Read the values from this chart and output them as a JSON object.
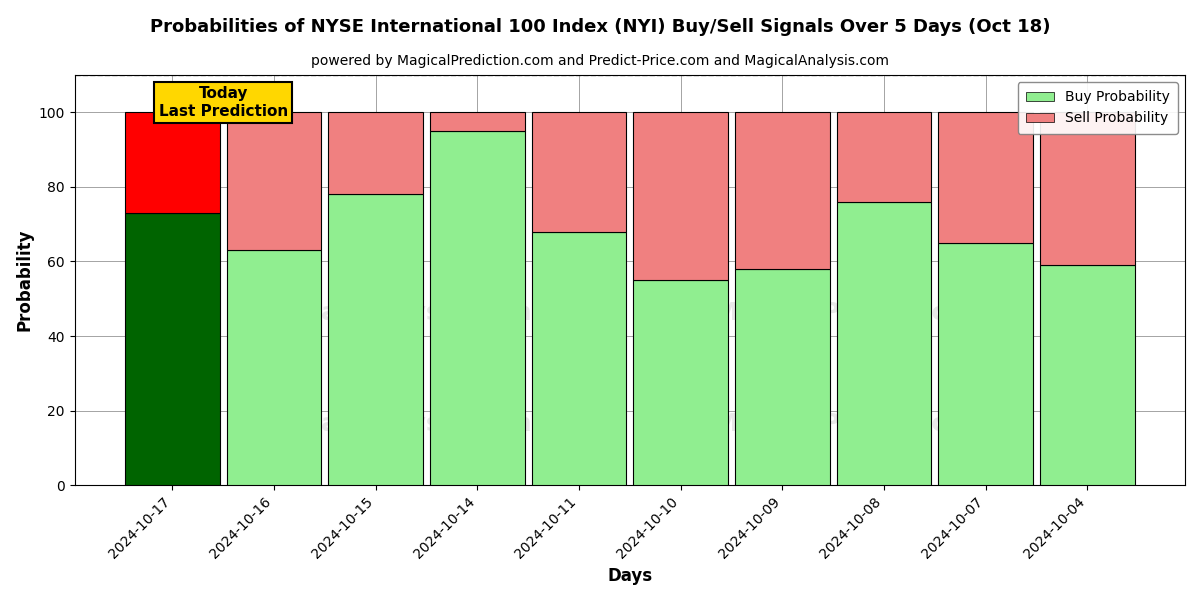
{
  "title": "Probabilities of NYSE International 100 Index (NYI) Buy/Sell Signals Over 5 Days (Oct 18)",
  "subtitle": "powered by MagicalPrediction.com and Predict-Price.com and MagicalAnalysis.com",
  "xlabel": "Days",
  "ylabel": "Probability",
  "categories": [
    "2024-10-17",
    "2024-10-16",
    "2024-10-15",
    "2024-10-14",
    "2024-10-11",
    "2024-10-10",
    "2024-10-09",
    "2024-10-08",
    "2024-10-07",
    "2024-10-04"
  ],
  "buy_values": [
    73,
    63,
    78,
    95,
    68,
    55,
    58,
    76,
    65,
    59
  ],
  "sell_values": [
    27,
    37,
    22,
    5,
    32,
    45,
    42,
    24,
    35,
    41
  ],
  "today_buy_color": "#006400",
  "today_sell_color": "#FF0000",
  "buy_color": "#90EE90",
  "sell_color": "#F08080",
  "ylim": [
    0,
    110
  ],
  "yticks": [
    0,
    20,
    40,
    60,
    80,
    100
  ],
  "dashed_line_y": 110,
  "today_label": "Today\nLast Prediction",
  "today_label_color": "#FFD700",
  "legend_buy": "Buy Probability",
  "legend_sell": "Sell Probability",
  "background_color": "#FFFFFF",
  "bar_width": 0.93
}
